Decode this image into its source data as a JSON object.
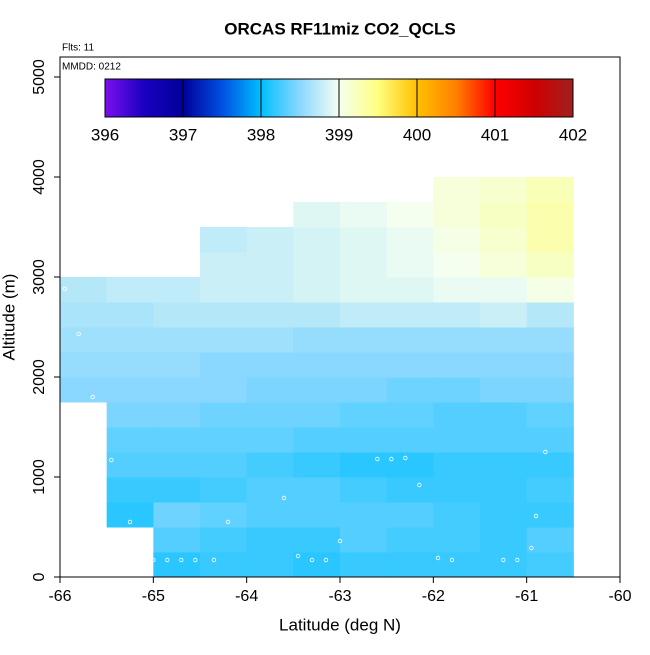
{
  "chart_data": {
    "type": "heatmap",
    "title": "ORCAS RF11miz CO2_QCLS",
    "annotations": [
      "Flts: 11",
      "MMDD: 0212"
    ],
    "x_label": "Latitude (deg N)",
    "y_label": "Altitude (m)",
    "xlim": [
      -66,
      -60
    ],
    "xticks": [
      -66,
      -65,
      -64,
      -63,
      -62,
      -61,
      -60
    ],
    "ylim": [
      0,
      5200
    ],
    "yticks": [
      0,
      1000,
      2000,
      3000,
      4000,
      5000
    ],
    "x_bins": [
      -66,
      -65.5,
      -65,
      -64.5,
      -64,
      -63.5,
      -63,
      -62.5,
      -62,
      -61.5,
      -61,
      -60.5
    ],
    "y_bins": [
      0,
      250,
      500,
      750,
      1000,
      1250,
      1500,
      1750,
      2000,
      2250,
      2500,
      2750,
      3000,
      3250,
      3500,
      3750,
      4000
    ],
    "values": [
      [
        null,
        null,
        398.15,
        398.2,
        398.2,
        398.15,
        398.2,
        398.2,
        398.2,
        398.2,
        398.25
      ],
      [
        null,
        null,
        398.3,
        398.25,
        398.2,
        398.2,
        398.3,
        398.25,
        398.25,
        398.2,
        398.3
      ],
      [
        null,
        398.15,
        398.4,
        398.35,
        398.3,
        398.3,
        398.3,
        398.3,
        398.25,
        398.2,
        398.2
      ],
      [
        null,
        398.2,
        398.2,
        398.25,
        398.3,
        398.3,
        398.25,
        398.2,
        398.2,
        398.2,
        398.25
      ],
      [
        null,
        398.3,
        398.3,
        398.3,
        398.25,
        398.2,
        398.15,
        398.15,
        398.2,
        398.2,
        398.2
      ],
      [
        null,
        398.35,
        398.35,
        398.35,
        398.35,
        398.3,
        398.3,
        398.3,
        398.3,
        398.3,
        398.3
      ],
      [
        null,
        398.45,
        398.45,
        398.4,
        398.4,
        398.4,
        398.35,
        398.35,
        398.3,
        398.3,
        398.35
      ],
      [
        398.5,
        398.5,
        398.5,
        398.5,
        398.45,
        398.45,
        398.45,
        398.4,
        398.4,
        398.45,
        398.45
      ],
      [
        398.55,
        398.55,
        398.55,
        398.5,
        398.5,
        398.5,
        398.5,
        398.5,
        398.5,
        398.5,
        398.5
      ],
      [
        398.6,
        398.6,
        398.6,
        398.6,
        398.6,
        398.55,
        398.55,
        398.55,
        398.55,
        398.55,
        398.55
      ],
      [
        398.65,
        398.65,
        398.7,
        398.7,
        398.7,
        398.7,
        398.75,
        398.75,
        398.75,
        398.8,
        398.7
      ],
      [
        398.7,
        398.75,
        398.75,
        398.8,
        398.8,
        398.85,
        398.9,
        398.9,
        398.95,
        398.95,
        399.05
      ],
      [
        null,
        null,
        null,
        398.8,
        398.8,
        398.85,
        398.9,
        398.95,
        399.0,
        399.1,
        399.2
      ],
      [
        null,
        null,
        null,
        398.75,
        398.8,
        398.85,
        398.9,
        398.95,
        399.05,
        399.15,
        399.3
      ],
      [
        null,
        null,
        null,
        null,
        null,
        398.9,
        398.95,
        399.0,
        399.1,
        399.2,
        399.3
      ],
      [
        null,
        null,
        null,
        null,
        null,
        null,
        null,
        null,
        399.1,
        399.15,
        399.25
      ]
    ],
    "clim": [
      396,
      402
    ],
    "cticks": [
      396,
      397,
      398,
      399,
      400,
      401,
      402
    ],
    "colors": [
      "#7a10f0",
      "#1a00c0",
      "#00009a",
      "#0050e0",
      "#00bfff",
      "#8ad8ff",
      "#f4fff0",
      "#ffff80",
      "#ffc000",
      "#ff8000",
      "#ff0000",
      "#d00000",
      "#a02020"
    ],
    "points": {
      "x": [
        -65.95,
        -65.8,
        -65.65,
        -65.45,
        -65.25,
        -65.0,
        -64.85,
        -64.7,
        -64.55,
        -64.35,
        -64.2,
        -63.6,
        -63.45,
        -63.3,
        -63.15,
        -63.0,
        -62.6,
        -62.45,
        -62.3,
        -62.15,
        -61.95,
        -61.8,
        -61.25,
        -61.1,
        -60.95,
        -60.9,
        -60.8
      ],
      "y": [
        2880,
        2430,
        1800,
        1170,
        550,
        170,
        170,
        170,
        170,
        170,
        550,
        790,
        210,
        170,
        170,
        360,
        1180,
        1180,
        1190,
        920,
        190,
        170,
        170,
        170,
        290,
        610,
        1250
      ]
    }
  }
}
